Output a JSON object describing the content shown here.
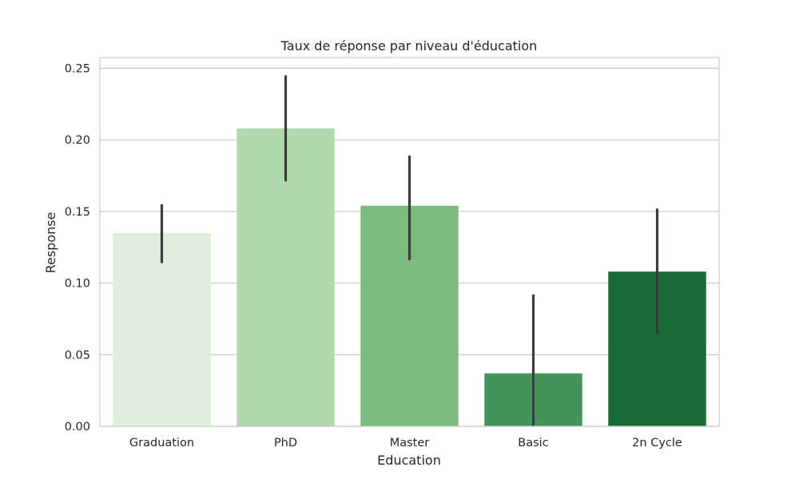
{
  "chart_data": {
    "type": "bar",
    "title": "Taux de réponse par niveau d'éducation",
    "xlabel": "Education",
    "ylabel": "Response",
    "categories": [
      "Graduation",
      "PhD",
      "Master",
      "Basic",
      "2n Cycle"
    ],
    "values": [
      0.135,
      0.208,
      0.154,
      0.037,
      0.108
    ],
    "error_bars": [
      [
        0.114,
        0.155
      ],
      [
        0.171,
        0.245
      ],
      [
        0.116,
        0.189
      ],
      [
        0.0,
        0.092
      ],
      [
        0.064,
        0.152
      ]
    ],
    "ylim": [
      0,
      0.2575
    ],
    "yticks": [
      0.0,
      0.05,
      0.1,
      0.15,
      0.2,
      0.25
    ],
    "ytick_labels": [
      "0.00",
      "0.05",
      "0.10",
      "0.15",
      "0.20",
      "0.25"
    ],
    "grid": true,
    "colors": [
      "#dfefdc",
      "#b2d9ae",
      "#7cbb7e",
      "#42955a",
      "#196a37"
    ],
    "errorbar_color": "#3c3c3c",
    "grid_color": "#cccccc",
    "frame_color": "#cccccc"
  }
}
